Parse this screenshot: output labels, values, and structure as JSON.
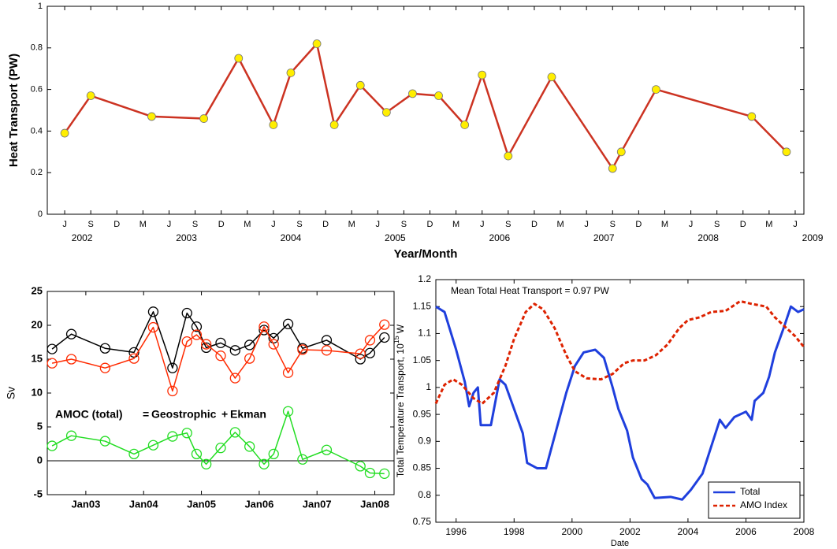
{
  "chart_data": [
    {
      "type": "line",
      "ylabel": "Heat Transport (PW)",
      "xlabel": "Year/Month",
      "x": [
        "2002-06",
        "2002-09",
        "2003-04",
        "2003-10",
        "2004-02",
        "2004-06",
        "2004-08",
        "2004-11",
        "2005-01",
        "2005-04",
        "2005-07",
        "2005-10",
        "2006-01",
        "2006-04",
        "2006-06",
        "2006-09",
        "2007-02",
        "2007-09",
        "2007-10",
        "2008-02",
        "2009-01",
        "2009-05"
      ],
      "values": [
        0.39,
        0.57,
        0.47,
        0.46,
        0.75,
        0.43,
        0.68,
        0.82,
        0.43,
        0.62,
        0.49,
        0.58,
        0.57,
        0.43,
        0.67,
        0.28,
        0.66,
        0.22,
        0.3,
        0.6,
        0.47,
        0.3
      ],
      "color": "#cc3322",
      "marker": "filled",
      "marker_color": "#ffee00",
      "xlim": [
        "2002-04",
        "2009-07"
      ],
      "xticks": [
        {
          "value": "2002-06",
          "label": "J"
        },
        {
          "value": "2002-09",
          "label": "S"
        },
        {
          "value": "2002-12",
          "label": "D"
        },
        {
          "value": "2003-03",
          "label": "M"
        },
        {
          "value": "2003-06",
          "label": "J"
        },
        {
          "value": "2003-09",
          "label": "S"
        },
        {
          "value": "2003-12",
          "label": "D"
        },
        {
          "value": "2004-03",
          "label": "M"
        },
        {
          "value": "2004-06",
          "label": "J"
        },
        {
          "value": "2004-09",
          "label": "S"
        },
        {
          "value": "2004-12",
          "label": "D"
        },
        {
          "value": "2005-03",
          "label": "M"
        },
        {
          "value": "2005-06",
          "label": "J"
        },
        {
          "value": "2005-09",
          "label": "S"
        },
        {
          "value": "2005-12",
          "label": "D"
        },
        {
          "value": "2006-03",
          "label": "M"
        },
        {
          "value": "2006-06",
          "label": "J"
        },
        {
          "value": "2006-09",
          "label": "S"
        },
        {
          "value": "2006-12",
          "label": "D"
        },
        {
          "value": "2007-03",
          "label": "M"
        },
        {
          "value": "2007-06",
          "label": "J"
        },
        {
          "value": "2007-09",
          "label": "S"
        },
        {
          "value": "2007-12",
          "label": "D"
        },
        {
          "value": "2008-03",
          "label": "M"
        },
        {
          "value": "2008-06",
          "label": "J"
        },
        {
          "value": "2008-09",
          "label": "S"
        },
        {
          "value": "2008-12",
          "label": "D"
        },
        {
          "value": "2009-03",
          "label": "M"
        },
        {
          "value": "2009-06",
          "label": "J"
        }
      ],
      "year_labels": [
        {
          "value": "2002-08",
          "label": "2002"
        },
        {
          "value": "2003-08",
          "label": "2003"
        },
        {
          "value": "2004-08",
          "label": "2004"
        },
        {
          "value": "2005-08",
          "label": "2005"
        },
        {
          "value": "2006-08",
          "label": "2006"
        },
        {
          "value": "2007-08",
          "label": "2007"
        },
        {
          "value": "2008-08",
          "label": "2008"
        },
        {
          "value": "2009-08",
          "label": "2009"
        }
      ],
      "ylim": [
        0,
        1
      ],
      "yticks": [
        0,
        0.2,
        0.4,
        0.6,
        0.8,
        1
      ]
    },
    {
      "type": "line",
      "ylabel": "Sv",
      "marker": "open",
      "x": [
        "2002-06",
        "2002-10",
        "2003-05",
        "2003-11",
        "2004-03",
        "2004-07",
        "2004-10",
        "2004-12",
        "2005-02",
        "2005-05",
        "2005-08",
        "2005-11",
        "2006-02",
        "2006-04",
        "2006-07",
        "2006-10",
        "2007-03",
        "2007-10",
        "2007-12",
        "2008-03"
      ],
      "series": [
        {
          "name": "AMOC (total)",
          "color": "#000000",
          "values": [
            16.5,
            18.7,
            16.6,
            16.0,
            22.0,
            13.7,
            21.8,
            19.8,
            16.7,
            17.4,
            16.3,
            17.1,
            19.3,
            18.1,
            20.2,
            16.6,
            17.8,
            15.0,
            15.9,
            18.2
          ]
        },
        {
          "name": "Geostrophic",
          "color": "#ff2a00",
          "values": [
            14.4,
            15.0,
            13.7,
            15.1,
            19.7,
            10.3,
            17.6,
            18.6,
            17.2,
            15.5,
            12.2,
            15.1,
            19.8,
            17.2,
            13.0,
            16.4,
            16.3,
            15.8,
            17.8,
            20.1
          ]
        },
        {
          "name": "Ekman",
          "color": "#22dd22",
          "values": [
            2.2,
            3.7,
            2.9,
            1.0,
            2.3,
            3.6,
            4.1,
            1.0,
            -0.5,
            1.9,
            4.2,
            2.1,
            -0.5,
            1.0,
            7.3,
            0.2,
            1.6,
            -0.8,
            -1.8,
            -1.9
          ]
        }
      ],
      "annotations": [
        "=",
        "+"
      ],
      "legend": "inline",
      "xlim": [
        "2002-05",
        "2008-05"
      ],
      "xticks": [
        {
          "value": "2003-01",
          "label": "Jan03"
        },
        {
          "value": "2004-01",
          "label": "Jan04"
        },
        {
          "value": "2005-01",
          "label": "Jan05"
        },
        {
          "value": "2006-01",
          "label": "Jan06"
        },
        {
          "value": "2007-01",
          "label": "Jan07"
        },
        {
          "value": "2008-01",
          "label": "Jan08"
        }
      ],
      "ylim": [
        -5,
        25
      ],
      "yticks": [
        -5,
        0,
        5,
        10,
        15,
        20,
        25
      ],
      "hlines": [
        0
      ]
    },
    {
      "type": "line",
      "ylabel": [
        "Total Temperature Transport, 10",
        "15",
        "W"
      ],
      "xlabel": "Date",
      "annotation": "Mean Total Heat Transport = 0.97 PW",
      "legend": "lower right",
      "series": [
        {
          "name": "Total",
          "color": "#1f3fdd",
          "x": [
            1995.3,
            1995.6,
            1996.0,
            1996.3,
            1996.45,
            1996.6,
            1996.75,
            1996.85,
            1997.2,
            1997.5,
            1997.7,
            1998.0,
            1998.3,
            1998.45,
            1998.8,
            1999.1,
            1999.4,
            1999.8,
            2000.1,
            2000.4,
            2000.8,
            2001.1,
            2001.4,
            2001.6,
            2001.9,
            2002.1,
            2002.4,
            2002.6,
            2002.85,
            2003.4,
            2003.8,
            2004.1,
            2004.5,
            2004.8,
            2005.1,
            2005.3,
            2005.6,
            2006.0,
            2006.2,
            2006.3,
            2006.6,
            2006.8,
            2007.0,
            2007.3,
            2007.55,
            2007.8,
            2008.0
          ],
          "values": [
            1.15,
            1.14,
            1.07,
            1.01,
            0.965,
            0.99,
            1.0,
            0.93,
            0.93,
            1.015,
            1.005,
            0.96,
            0.915,
            0.86,
            0.85,
            0.85,
            0.91,
            0.99,
            1.04,
            1.065,
            1.07,
            1.055,
            1.0,
            0.96,
            0.92,
            0.87,
            0.83,
            0.82,
            0.795,
            0.797,
            0.792,
            0.81,
            0.84,
            0.89,
            0.94,
            0.925,
            0.945,
            0.955,
            0.94,
            0.975,
            0.99,
            1.02,
            1.065,
            1.11,
            1.15,
            1.14,
            1.145
          ]
        },
        {
          "name": "AMO Index",
          "color": "#dd2200",
          "dash": true,
          "x": [
            1995.3,
            1995.6,
            1995.9,
            1996.2,
            1996.6,
            1996.9,
            1997.3,
            1997.7,
            1998.0,
            1998.4,
            1998.7,
            1999.0,
            1999.4,
            1999.8,
            2000.1,
            2000.5,
            2001.0,
            2001.4,
            2001.8,
            2002.1,
            2002.5,
            2002.9,
            2003.3,
            2003.7,
            2004.0,
            2004.4,
            2004.8,
            2005.3,
            2005.8,
            2006.2,
            2006.7,
            2007.0,
            2007.4,
            2007.7,
            2008.0
          ],
          "values": [
            0.97,
            1.005,
            1.015,
            1.005,
            0.98,
            0.97,
            0.99,
            1.04,
            1.09,
            1.14,
            1.155,
            1.145,
            1.11,
            1.06,
            1.03,
            1.017,
            1.015,
            1.025,
            1.045,
            1.05,
            1.05,
            1.06,
            1.08,
            1.11,
            1.125,
            1.13,
            1.14,
            1.142,
            1.16,
            1.155,
            1.15,
            1.13,
            1.11,
            1.095,
            1.075
          ]
        }
      ],
      "xlim": [
        1995.3,
        2008
      ],
      "xticks": [
        1996,
        1998,
        2000,
        2002,
        2004,
        2006,
        2008
      ],
      "ylim": [
        0.75,
        1.2
      ],
      "yticks": [
        0.75,
        0.8,
        0.85,
        0.9,
        0.95,
        1,
        1.05,
        1.1,
        1.15,
        1.2
      ]
    }
  ]
}
